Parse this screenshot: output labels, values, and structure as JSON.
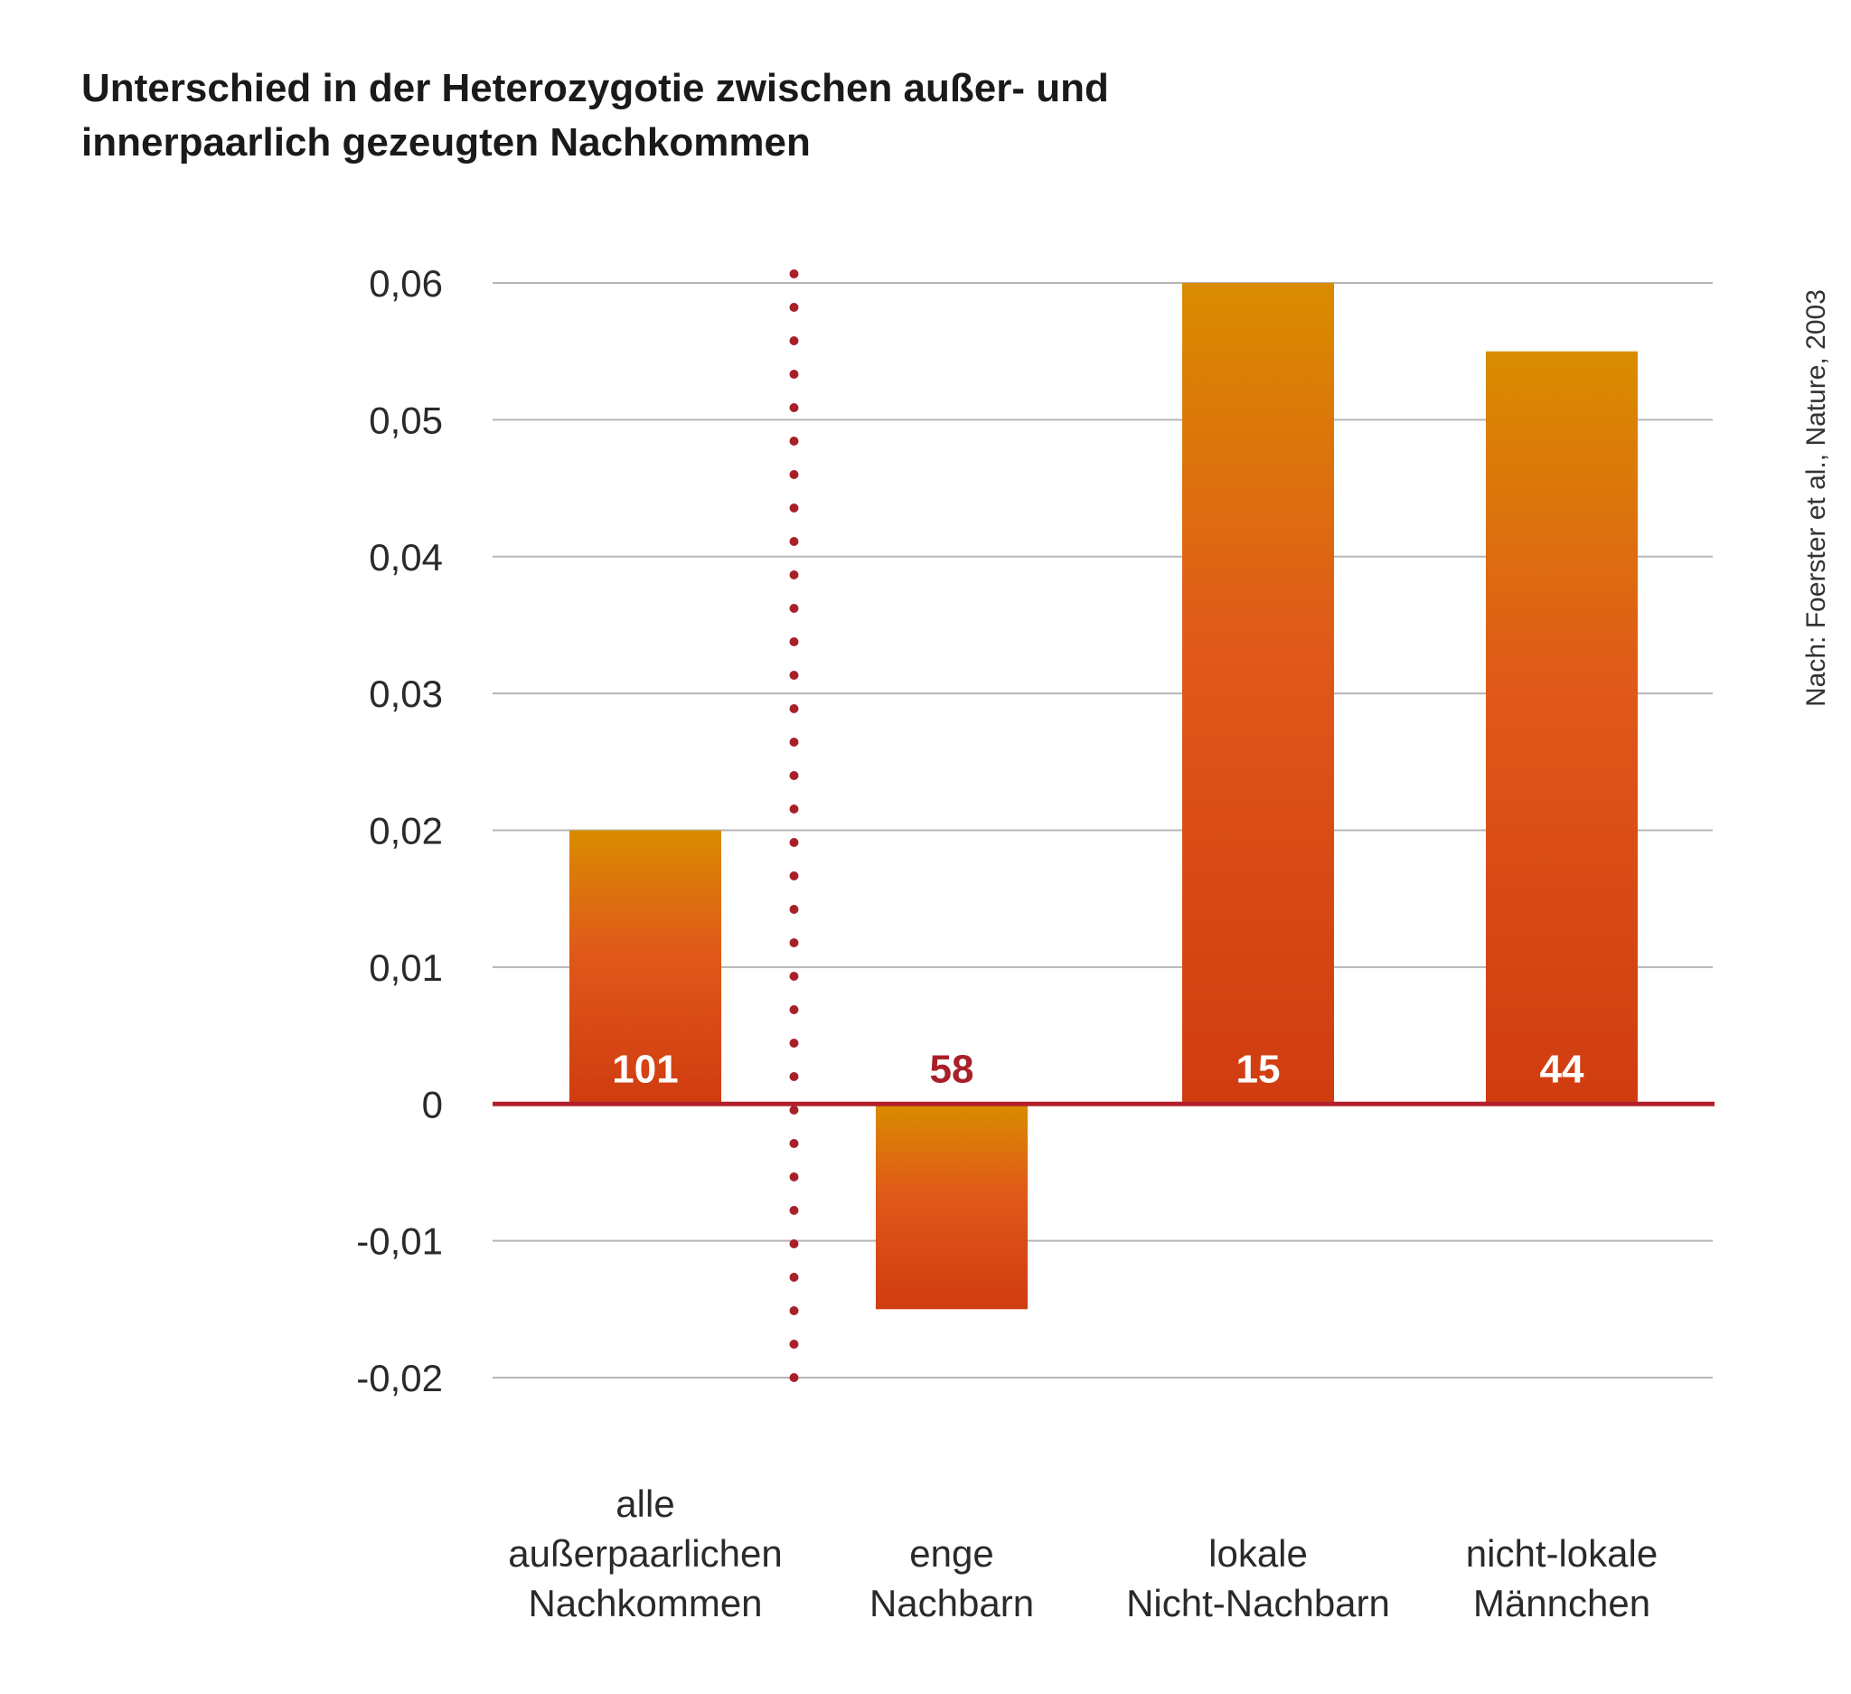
{
  "chart_data": {
    "type": "bar",
    "title_lines": [
      "Unterschied in der Heterozygotie zwischen außer- und",
      "innerpaarlich gezeugten Nachkommen"
    ],
    "categories": [
      [
        "alle",
        "außerpaarlichen",
        "Nachkommen"
      ],
      [
        "enge",
        "Nachbarn"
      ],
      [
        "lokale",
        "Nicht-Nachbarn"
      ],
      [
        "nicht-lokale",
        "Männchen"
      ]
    ],
    "values": [
      0.02,
      -0.015,
      0.06,
      0.055
    ],
    "sample_sizes": [
      "101",
      "58",
      "15",
      "44"
    ],
    "ylim": [
      -0.02,
      0.06
    ],
    "yticks": [
      0.06,
      0.05,
      0.04,
      0.03,
      0.02,
      0.01,
      0,
      -0.01,
      -0.02
    ],
    "ytick_labels": [
      "0,06",
      "0,05",
      "0,04",
      "0,03",
      "0,02",
      "0,01",
      "0",
      "-0,01",
      "-0,02"
    ],
    "grid": true,
    "separator_after_category": 0,
    "source": "Nach: Foerster et al., Nature, 2003"
  },
  "colors": {
    "bar_top": "#d98c00",
    "bar_mid": "#e0581a",
    "bar_bottom": "#d03c10",
    "zero_line": "#b3202a",
    "separator": "#a8202a",
    "grid": "#b5b5b5",
    "count_on_bar": "#ffffff",
    "count_below_zero": "#a8202a"
  }
}
